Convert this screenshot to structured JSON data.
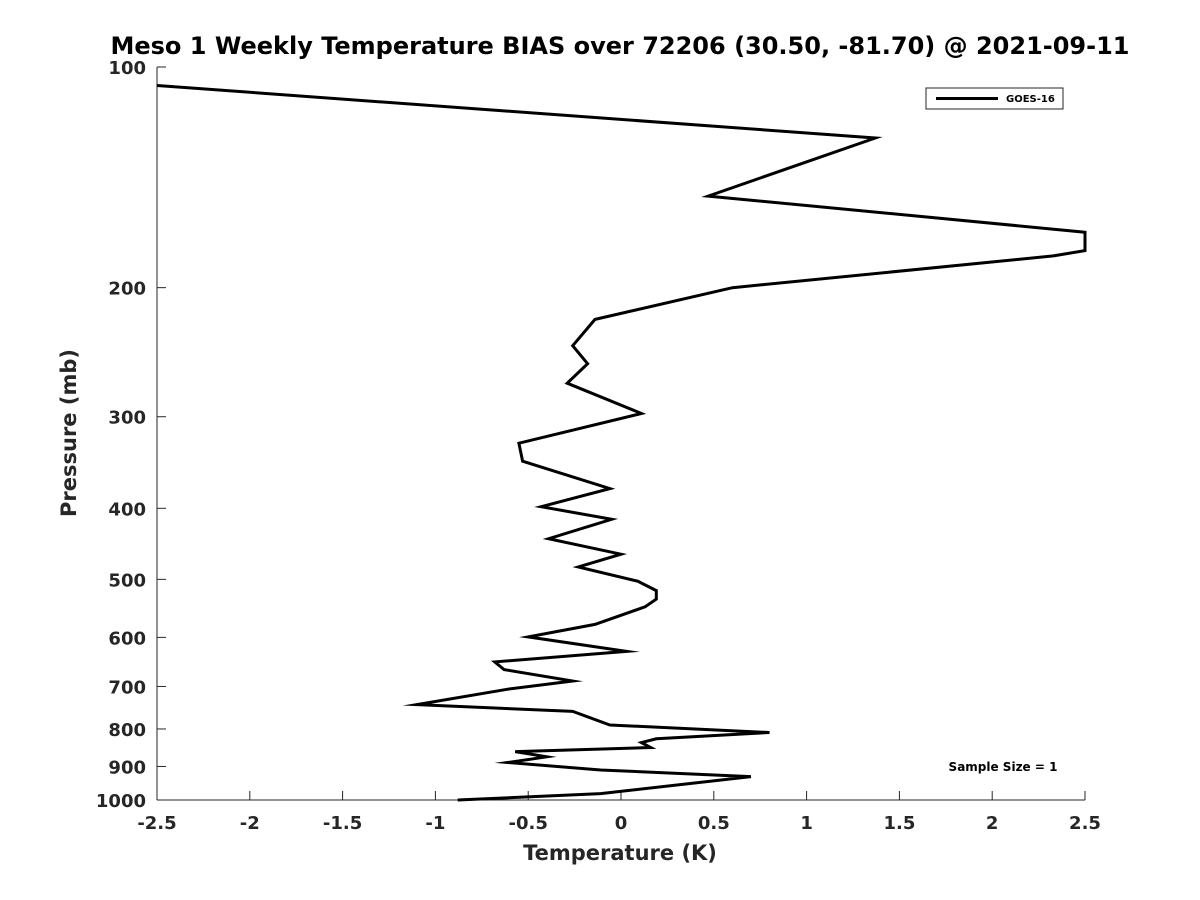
{
  "chart_data": {
    "type": "line",
    "title": "Meso 1 Weekly Temperature BIAS over 72206 (30.50, -81.70) @ 2021-09-11",
    "xlabel": "Temperature (K)",
    "ylabel": "Pressure (mb)",
    "xlim": [
      -2.5,
      2.5
    ],
    "ylim": [
      100,
      1000
    ],
    "y_scale": "log",
    "y_reversed": true,
    "grid": false,
    "legend_position": "top-right",
    "x_ticks": [
      "-2.5",
      "-2",
      "-1.5",
      "-1",
      "-0.5",
      "0",
      "0.5",
      "1",
      "1.5",
      "2",
      "2.5"
    ],
    "y_ticks": [
      "100",
      "200",
      "300",
      "400",
      "500",
      "600",
      "700",
      "800",
      "900",
      "1000"
    ],
    "annotation": "Sample Size = 1",
    "series": [
      {
        "name": "GOES-16",
        "color": "#000000",
        "points": [
          [
            -2.5,
            106
          ],
          [
            1.37,
            125
          ],
          [
            0.47,
            150
          ],
          [
            2.5,
            168
          ],
          [
            2.5,
            178
          ],
          [
            2.33,
            181
          ],
          [
            0.6,
            200
          ],
          [
            -0.14,
            221
          ],
          [
            -0.26,
            240
          ],
          [
            -0.18,
            254
          ],
          [
            -0.29,
            270
          ],
          [
            0.11,
            297
          ],
          [
            -0.55,
            326
          ],
          [
            -0.53,
            345
          ],
          [
            -0.06,
            376
          ],
          [
            -0.43,
            398
          ],
          [
            -0.05,
            414
          ],
          [
            -0.39,
            440
          ],
          [
            0.0,
            462
          ],
          [
            -0.23,
            481
          ],
          [
            0.09,
            503
          ],
          [
            0.19,
            518
          ],
          [
            0.19,
            532
          ],
          [
            0.13,
            545
          ],
          [
            -0.14,
            576
          ],
          [
            -0.5,
            599
          ],
          [
            0.03,
            627
          ],
          [
            -0.68,
            648
          ],
          [
            -0.63,
            664
          ],
          [
            -0.26,
            688
          ],
          [
            -0.61,
            706
          ],
          [
            -1.1,
            741
          ],
          [
            -0.26,
            757
          ],
          [
            -0.06,
            790
          ],
          [
            0.8,
            809
          ],
          [
            0.19,
            825
          ],
          [
            0.11,
            835
          ],
          [
            0.16,
            848
          ],
          [
            -0.57,
            859
          ],
          [
            -0.4,
            873
          ],
          [
            -0.61,
            889
          ],
          [
            -0.11,
            910
          ],
          [
            0.7,
            929
          ],
          [
            -0.11,
            980
          ],
          [
            -0.88,
            1000
          ]
        ]
      }
    ]
  }
}
